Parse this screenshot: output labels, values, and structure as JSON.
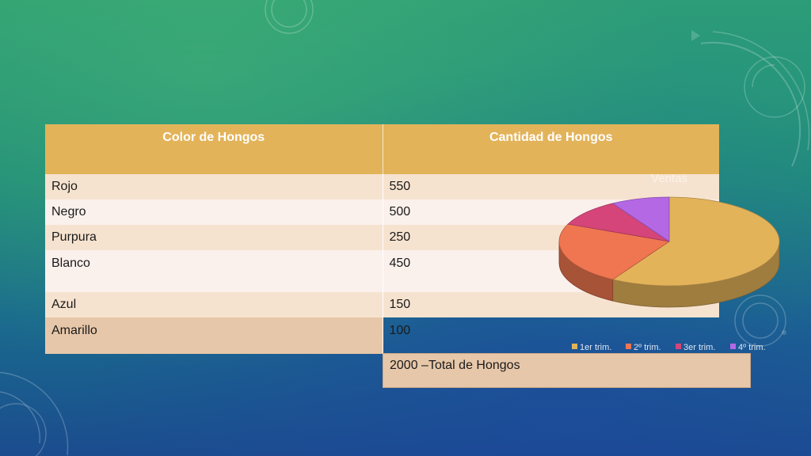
{
  "table": {
    "headers": [
      "Color de Hongos",
      "Cantidad de Hongos"
    ],
    "rows": [
      [
        "Rojo",
        "550"
      ],
      [
        "Negro",
        "500"
      ],
      [
        "Purpura",
        "250"
      ],
      [
        "Blanco",
        "450"
      ],
      [
        "Azul",
        "150"
      ],
      [
        "Amarillo",
        "100"
      ]
    ]
  },
  "total_text": "2000 –Total de Hongos",
  "colors": {
    "header_bg": "#e3b35a",
    "row_odd": "#f6e3cf",
    "row_even": "#faf0ec",
    "total_bg": "#e7c7a9"
  },
  "chart_data": {
    "type": "pie",
    "title": "Ventas",
    "categories": [
      "1er trim.",
      "2º trim.",
      "3er trim.",
      "4º trim."
    ],
    "values": [
      8.2,
      3.2,
      1.4,
      1.2
    ],
    "colors": [
      "#e3b35a",
      "#ef7650",
      "#d54579",
      "#b468e4"
    ],
    "legend_position": "bottom",
    "style": "3d"
  }
}
